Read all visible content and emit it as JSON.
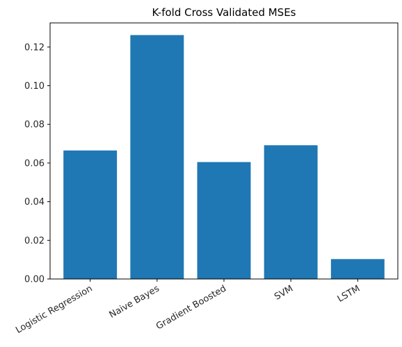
{
  "chart_data": {
    "type": "bar",
    "title": "K-fold Cross Validated MSEs",
    "xlabel": "",
    "ylabel": "",
    "categories": [
      "Logistic Regression",
      "Naive Bayes",
      "Gradient Boosted",
      "SVM",
      "LSTM"
    ],
    "values": [
      0.0665,
      0.1262,
      0.0605,
      0.0692,
      0.0103
    ],
    "ylim": [
      0,
      0.1325
    ],
    "yticks": [
      0.0,
      0.02,
      0.04,
      0.06,
      0.08,
      0.1,
      0.12
    ],
    "ytick_labels": [
      "0.00",
      "0.02",
      "0.04",
      "0.06",
      "0.08",
      "0.10",
      "0.12"
    ],
    "bar_color": "#1f77b4",
    "grid": false,
    "legend": false
  }
}
